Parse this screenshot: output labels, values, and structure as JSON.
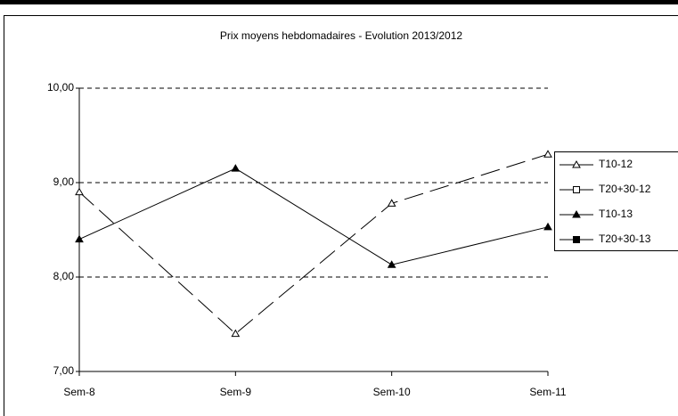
{
  "chart_data": {
    "type": "line",
    "title": "Prix moyens hebdomadaires - Evolution  2013/2012",
    "categories": [
      "Sem-8",
      "Sem-9",
      "Sem-10",
      "Sem-11"
    ],
    "series": [
      {
        "name": "T10-12",
        "color": "#000000",
        "marker": "triangle",
        "filled": false,
        "dash": "long-dash",
        "values": [
          8.9,
          7.4,
          8.78,
          9.3
        ]
      },
      {
        "name": "T20+30-12",
        "color": "#000000",
        "marker": "square",
        "filled": false,
        "dash": "long-dash",
        "values": [
          null,
          null,
          null,
          null
        ]
      },
      {
        "name": "T10-13",
        "color": "#000000",
        "marker": "triangle",
        "filled": true,
        "dash": "solid",
        "values": [
          8.4,
          9.15,
          8.13,
          8.53
        ]
      },
      {
        "name": "T20+30-13",
        "color": "#000000",
        "marker": "square",
        "filled": true,
        "dash": "solid",
        "values": [
          null,
          null,
          null,
          null
        ]
      }
    ],
    "ylim": [
      7,
      10
    ],
    "yticks": [
      {
        "value": 7,
        "label": "7,00"
      },
      {
        "value": 8,
        "label": "8,00"
      },
      {
        "value": 9,
        "label": "9,00"
      },
      {
        "value": 10,
        "label": "10,00"
      }
    ],
    "grid": true,
    "legend": "right"
  }
}
